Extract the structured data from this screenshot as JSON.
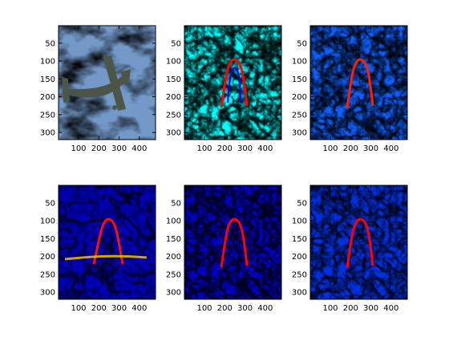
{
  "colors": {
    "background": "#ffffff",
    "axis": "#000000",
    "sky": "#7fa3cf",
    "cloud": "#e6eef7",
    "aircraft": "#4c5548",
    "colormap": [
      "#00008f",
      "#0000ff",
      "#00ffff",
      "#ffff00",
      "#ff0000",
      "#800000"
    ]
  },
  "chart_data": [
    {
      "type": "image",
      "panel": 1,
      "colormap": "photo",
      "content": "aircraft against cloudy sky",
      "xlim": [
        1,
        480
      ],
      "ylim": [
        320,
        1
      ],
      "xticks": [
        100,
        200,
        300,
        400
      ],
      "yticks": [
        50,
        100,
        150,
        200,
        250,
        300
      ],
      "xtick_labels": [
        "100",
        "200",
        "300",
        "400"
      ],
      "ytick_labels": [
        "50",
        "100",
        "150",
        "200",
        "250",
        "300"
      ]
    },
    {
      "type": "heatmap",
      "panel": 2,
      "colormap": "jet",
      "xlim": [
        1,
        480
      ],
      "ylim": [
        320,
        1
      ],
      "xticks": [
        100,
        200,
        300,
        400
      ],
      "yticks": [
        50,
        100,
        150,
        200,
        250,
        300
      ],
      "xtick_labels": [
        "100",
        "200",
        "300",
        "400"
      ],
      "ytick_labels": [
        "50",
        "100",
        "150",
        "200",
        "250",
        "300"
      ]
    },
    {
      "type": "heatmap",
      "panel": 3,
      "colormap": "jet",
      "xlim": [
        1,
        480
      ],
      "ylim": [
        320,
        1
      ],
      "xticks": [
        100,
        200,
        300,
        400
      ],
      "yticks": [
        50,
        100,
        150,
        200,
        250,
        300
      ],
      "xtick_labels": [
        "100",
        "200",
        "300",
        "400"
      ],
      "ytick_labels": [
        "50",
        "100",
        "150",
        "200",
        "250",
        "300"
      ]
    },
    {
      "type": "heatmap",
      "panel": 4,
      "colormap": "jet",
      "xlim": [
        1,
        480
      ],
      "ylim": [
        320,
        1
      ],
      "xticks": [
        100,
        200,
        300,
        400
      ],
      "yticks": [
        50,
        100,
        150,
        200,
        250,
        300
      ],
      "xtick_labels": [
        "100",
        "200",
        "300",
        "400"
      ],
      "ytick_labels": [
        "50",
        "100",
        "150",
        "200",
        "250",
        "300"
      ]
    },
    {
      "type": "heatmap",
      "panel": 5,
      "colormap": "jet",
      "xlim": [
        1,
        480
      ],
      "ylim": [
        320,
        1
      ],
      "xticks": [
        100,
        200,
        300,
        400
      ],
      "yticks": [
        50,
        100,
        150,
        200,
        250,
        300
      ],
      "xtick_labels": [
        "100",
        "200",
        "300",
        "400"
      ],
      "ytick_labels": [
        "50",
        "100",
        "150",
        "200",
        "250",
        "300"
      ]
    },
    {
      "type": "heatmap",
      "panel": 6,
      "colormap": "jet",
      "xlim": [
        1,
        480
      ],
      "ylim": [
        320,
        1
      ],
      "xticks": [
        100,
        200,
        300,
        400
      ],
      "yticks": [
        50,
        100,
        150,
        200,
        250,
        300
      ],
      "xtick_labels": [
        "100",
        "200",
        "300",
        "400"
      ],
      "ytick_labels": [
        "50",
        "100",
        "150",
        "200",
        "250",
        "300"
      ]
    }
  ]
}
